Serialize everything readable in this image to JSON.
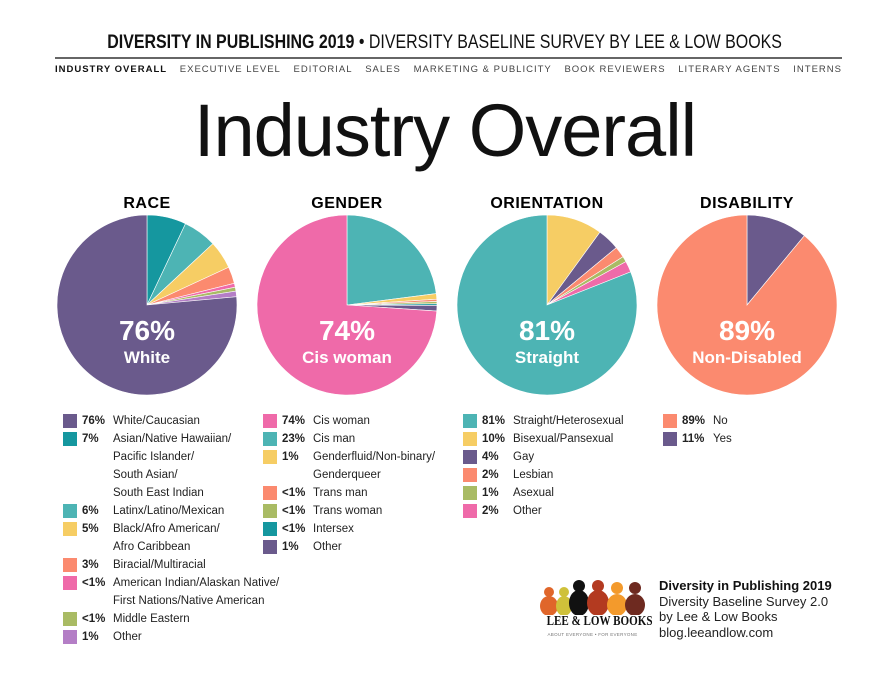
{
  "header": {
    "title_bold": "DIVERSITY IN PUBLISHING 2019",
    "separator": "•",
    "title_rest": "DIVERSITY BASELINE SURVEY BY LEE & LOW BOOKS"
  },
  "nav": [
    "INDUSTRY OVERALL",
    "EXECUTIVE LEVEL",
    "EDITORIAL",
    "SALES",
    "MARKETING & PUBLICITY",
    "BOOK REVIEWERS",
    "LITERARY AGENTS",
    "INTERNS"
  ],
  "page_title": "Industry Overall",
  "colors": {
    "purple": "#6a5a8c",
    "teal": "#15979f",
    "aqua": "#4db4b4",
    "yellow": "#f6cd64",
    "salmon": "#fb8a6f",
    "pink": "#ef6aa9",
    "olive": "#a9bb64",
    "lavender": "#b47ec6"
  },
  "chart_data": [
    {
      "type": "pie",
      "title": "RACE",
      "center_value": "76%",
      "center_label": "White",
      "slices": [
        {
          "pct": "7%",
          "value": 7,
          "color": "#15979f",
          "label": [
            "Asian/Native Hawaiian/",
            "Pacific Islander/",
            "South Asian/",
            "South East Indian"
          ]
        },
        {
          "pct": "6%",
          "value": 6,
          "color": "#4db4b4",
          "label": [
            "Latinx/Latino/Mexican"
          ]
        },
        {
          "pct": "5%",
          "value": 5,
          "color": "#f6cd64",
          "label": [
            "Black/Afro American/",
            "Afro Caribbean"
          ]
        },
        {
          "pct": "3%",
          "value": 3,
          "color": "#fb8a6f",
          "label": [
            "Biracial/Multiracial"
          ]
        },
        {
          "pct": "<1%",
          "value": 0.7,
          "color": "#ef6aa9",
          "label": [
            "American Indian/Alaskan Native/",
            "First Nations/Native American"
          ]
        },
        {
          "pct": "<1%",
          "value": 0.7,
          "color": "#a9bb64",
          "label": [
            "Middle Eastern"
          ]
        },
        {
          "pct": "1%",
          "value": 1,
          "color": "#b47ec6",
          "label": [
            "Other"
          ]
        },
        {
          "pct": "76%",
          "value": 76,
          "color": "#6a5a8c",
          "label": [
            "White/Caucasian"
          ]
        }
      ],
      "legend_order": [
        7,
        0,
        1,
        2,
        3,
        4,
        5,
        6
      ]
    },
    {
      "type": "pie",
      "title": "GENDER",
      "center_value": "74%",
      "center_label": "Cis woman",
      "slices": [
        {
          "pct": "23%",
          "value": 23,
          "color": "#4db4b4",
          "label": [
            "Cis man"
          ]
        },
        {
          "pct": "1%",
          "value": 1,
          "color": "#f6cd64",
          "label": [
            "Genderfluid/Non-binary/",
            "Genderqueer"
          ]
        },
        {
          "pct": "<1%",
          "value": 0.4,
          "color": "#fb8a6f",
          "label": [
            "Trans man"
          ]
        },
        {
          "pct": "<1%",
          "value": 0.4,
          "color": "#a9bb64",
          "label": [
            "Trans woman"
          ]
        },
        {
          "pct": "<1%",
          "value": 0.3,
          "color": "#15979f",
          "label": [
            "Intersex"
          ]
        },
        {
          "pct": "1%",
          "value": 1,
          "color": "#6a5a8c",
          "label": [
            "Other"
          ]
        },
        {
          "pct": "74%",
          "value": 74,
          "color": "#ef6aa9",
          "label": [
            "Cis woman"
          ]
        }
      ],
      "legend_order": [
        6,
        0,
        1,
        2,
        3,
        4,
        5
      ]
    },
    {
      "type": "pie",
      "title": "ORIENTATION",
      "center_value": "81%",
      "center_label": "Straight",
      "slices": [
        {
          "pct": "10%",
          "value": 10,
          "color": "#f6cd64",
          "label": [
            "Bisexual/Pansexual"
          ]
        },
        {
          "pct": "4%",
          "value": 4,
          "color": "#6a5a8c",
          "label": [
            "Gay"
          ]
        },
        {
          "pct": "2%",
          "value": 2,
          "color": "#fb8a6f",
          "label": [
            "Lesbian"
          ]
        },
        {
          "pct": "1%",
          "value": 1,
          "color": "#a9bb64",
          "label": [
            "Asexual"
          ]
        },
        {
          "pct": "2%",
          "value": 2,
          "color": "#ef6aa9",
          "label": [
            "Other"
          ]
        },
        {
          "pct": "81%",
          "value": 81,
          "color": "#4db4b4",
          "label": [
            "Straight/Heterosexual"
          ]
        }
      ],
      "legend_order": [
        5,
        0,
        1,
        2,
        3,
        4
      ]
    },
    {
      "type": "pie",
      "title": "DISABILITY",
      "center_value": "89%",
      "center_label": "Non-Disabled",
      "slices": [
        {
          "pct": "11%",
          "value": 11,
          "color": "#6a5a8c",
          "label": [
            "Yes"
          ]
        },
        {
          "pct": "89%",
          "value": 89,
          "color": "#fb8a6f",
          "label": [
            "No"
          ]
        }
      ],
      "legend_order": [
        1,
        0
      ]
    }
  ],
  "footer": {
    "line1": "Diversity in Publishing 2019",
    "line2": "Diversity Baseline Survey 2.0",
    "line3": "by Lee & Low Books",
    "line4": "blog.leeandlow.com"
  },
  "logo": {
    "name": "LEE & LOW BOOKS",
    "tagline": "ABOUT EVERYONE • FOR EVERYONE"
  }
}
